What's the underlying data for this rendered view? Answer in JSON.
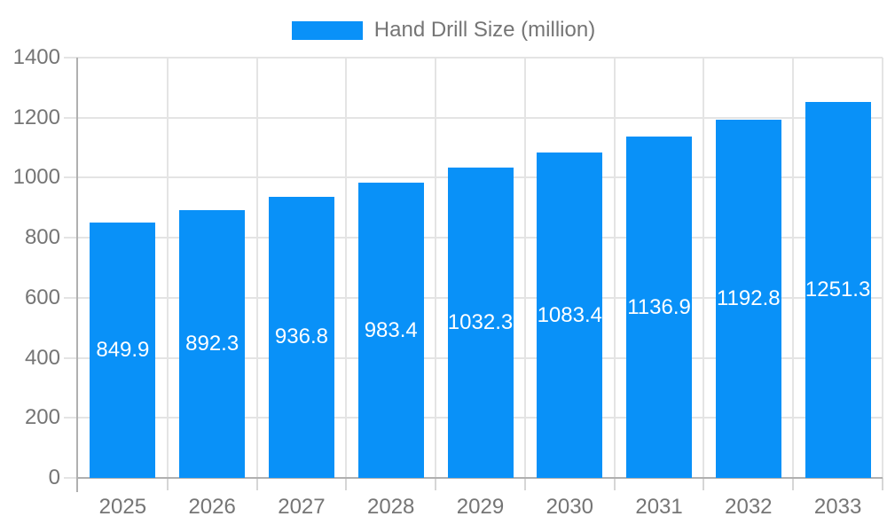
{
  "chart_data": {
    "type": "bar",
    "title": "Hand Drill Size (million)",
    "categories": [
      "2025",
      "2026",
      "2027",
      "2028",
      "2029",
      "2030",
      "2031",
      "2032",
      "2033"
    ],
    "series": [
      {
        "name": "Hand Drill Size (million)",
        "values": [
          849.9,
          892.3,
          936.8,
          983.4,
          1032.3,
          1083.4,
          1136.9,
          1192.8,
          1251.3
        ]
      }
    ],
    "data_labels": [
      "849.9",
      "892.3",
      "936.8",
      "983.4",
      "1032.3",
      "1083.4",
      "1136.9",
      "1192.8",
      "1251.3"
    ],
    "xlabel": "",
    "ylabel": "",
    "ylim": [
      0,
      1400
    ],
    "ytick_step": 200,
    "yticks": [
      "0",
      "200",
      "400",
      "600",
      "800",
      "1000",
      "1200",
      "1400"
    ],
    "grid": true,
    "legend_position": "top-center",
    "colors": {
      "bar": "#0991f8",
      "value_label": "#ffffff",
      "axis_line": "#b0b0b0",
      "gridline": "#e4e4e4",
      "boundary_tick": "#d6d6d6",
      "text": "#757575",
      "background": "#ffffff"
    }
  }
}
